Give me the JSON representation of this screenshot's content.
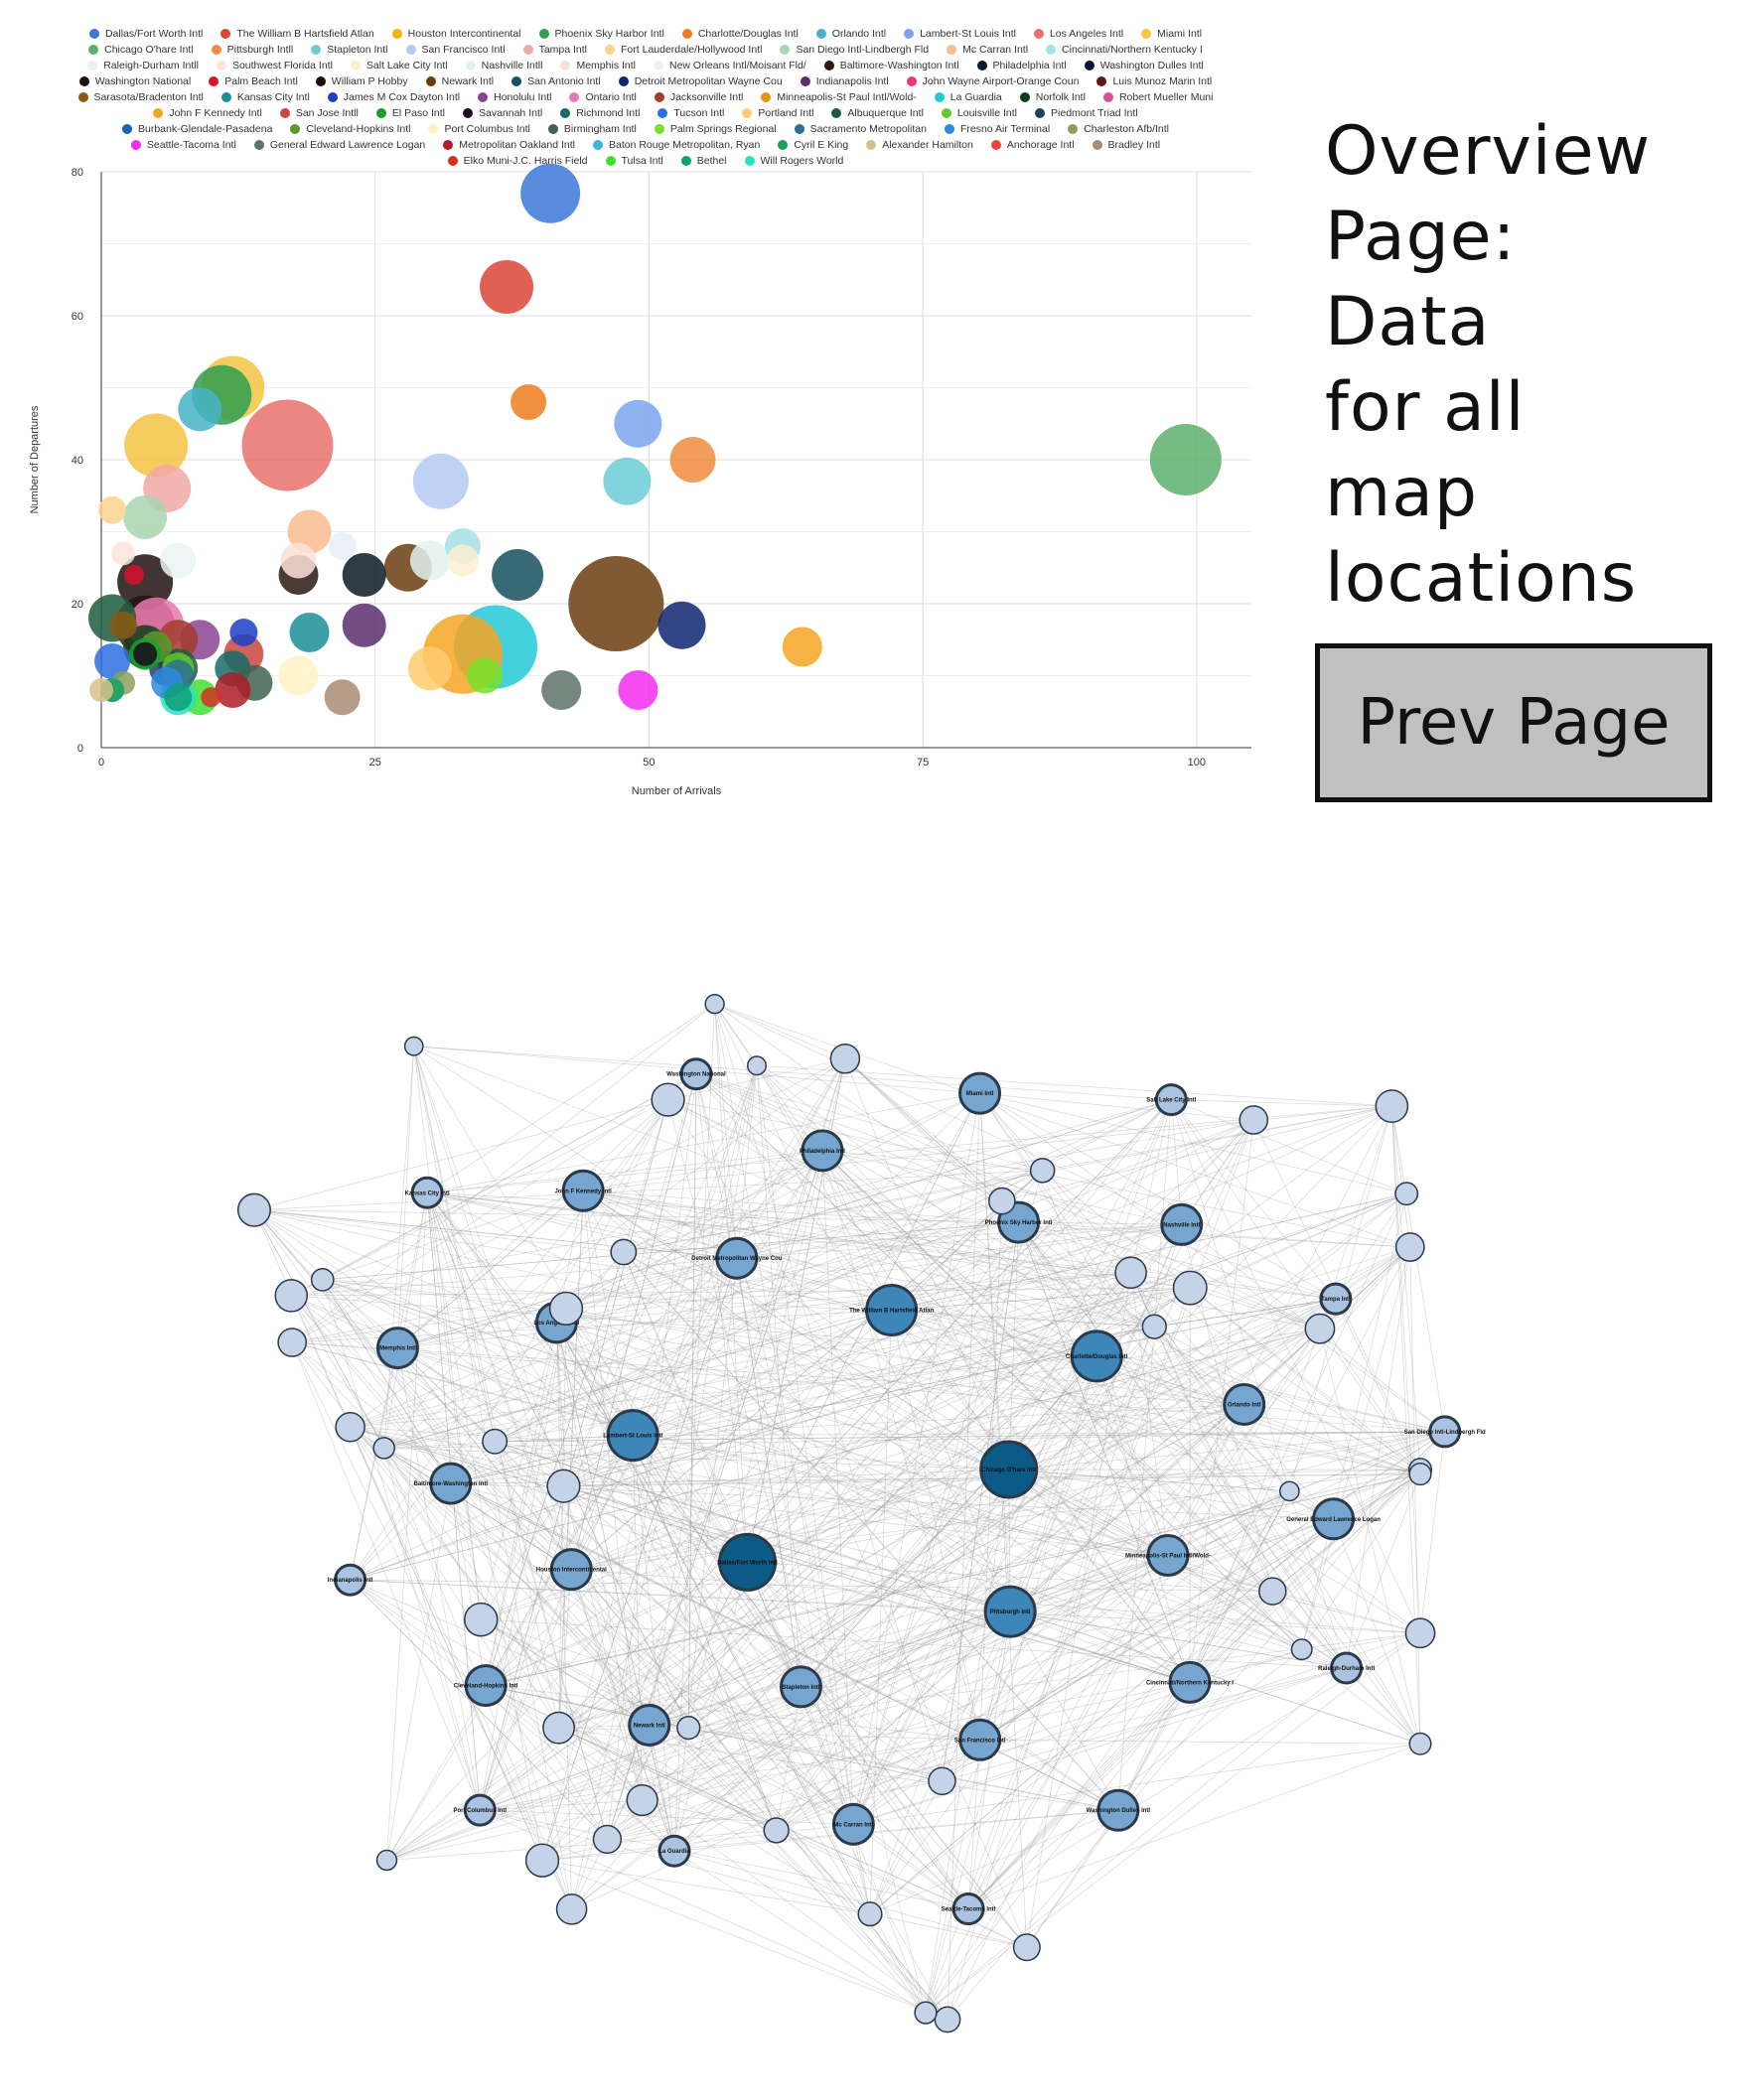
{
  "side_title_lines": [
    "Overview",
    "Page:",
    "Data",
    "for all",
    "map",
    "locations"
  ],
  "prev_button_label": "Prev Page",
  "chart_data": {
    "type": "scatter",
    "xlabel": "Number of Arrivals",
    "ylabel": "Number of Departures",
    "xlim": [
      0,
      105
    ],
    "ylim": [
      0,
      80
    ],
    "x_ticks": [
      "0",
      "25",
      "50",
      "75",
      "100"
    ],
    "y_ticks": [
      "0",
      "20",
      "40",
      "60",
      "80"
    ],
    "grid": true,
    "legend_placement": "top",
    "legend_rows": [
      [
        "Dallas/Fort Worth Intl",
        "The William B Hartsfield Atlan",
        "Houston Intercontinental",
        "Phoenix Sky Harbor Intl",
        "Charlotte/Douglas Intl",
        "Orlando Intl",
        "Lambert-St Louis Intl",
        "Los Angeles Intl",
        "Miami Intl"
      ],
      [
        "Chicago O'hare Intl",
        "Pittsburgh Intll",
        "Stapleton Intl",
        "San Francisco Intl",
        "Tampa Intl",
        "Fort Lauderdale/Hollywood Intl",
        "San Diego Intl-Lindbergh Fld",
        "Mc Carran Intl",
        "Cincinnati/Northern Kentucky I"
      ],
      [
        "Raleigh-Durham Intll",
        "Southwest Florida Intl",
        "Salt Lake City Intl",
        "Nashville Intll",
        "Memphis Intl",
        "New Orleans Intl/Moisant Fld/",
        "Baltimore-Washington Intl",
        "Philadelphia Intl",
        "Washington Dulles Intl"
      ],
      [
        "Washington National",
        "Palm Beach Intl",
        "William P Hobby",
        "Newark Intl",
        "San Antonio Intl",
        "Detroit Metropolitan Wayne Cou",
        "Indianapolis Intl",
        "John Wayne Airport-Orange Coun",
        "Luis Munoz Marin Intl"
      ],
      [
        "Sarasota/Bradenton Intl",
        "Kansas City Intl",
        "James M Cox Dayton Intl",
        "Honolulu Intl",
        "Ontario Intl",
        "Jacksonville Intl",
        "Minneapolis-St Paul Intl/Wold-",
        "La Guardia",
        "Norfolk Intl",
        "Robert Mueller Muni"
      ],
      [
        "John F Kennedy Intl",
        "San Jose Intll",
        "El Paso Intl",
        "Savannah Intl",
        "Richmond Intl",
        "Tucson Intl",
        "Portland Intl",
        "Albuquerque Intl",
        "Louisville Intl",
        "Piedmont Triad Intl"
      ],
      [
        "Burbank-Glendale-Pasadena",
        "Cleveland-Hopkins Intl",
        "Port Columbus Intl",
        "Birmingham Intl",
        "Palm Springs Regional",
        "Sacramento Metropolitan",
        "Fresno Air Terminal",
        "Charleston Afb/Intl"
      ],
      [
        "Seattle-Tacoma Intl",
        "General Edward Lawrence Logan",
        "Metropolitan Oakland Intl",
        "Baton Rouge Metropolitan, Ryan",
        "Cyril E King",
        "Alexander Hamilton",
        "Anchorage Intl",
        "Bradley Intl"
      ],
      [
        "Elko Muni-J.C. Harris Field",
        "Tulsa Intl",
        "Bethel",
        "Will Rogers World"
      ]
    ],
    "legend_colors": [
      [
        "#3b78d8",
        "#db4437",
        "#f4b400",
        "#2e9e4f",
        "#f07c1d",
        "#46b3c6",
        "#7aa4ef",
        "#e8716a",
        "#f6c342"
      ],
      [
        "#5cb06b",
        "#f08c40",
        "#6cccd6",
        "#b5c9f5",
        "#f0a8a3",
        "#fbd38d",
        "#a8d5b2",
        "#f8bc90",
        "#a6dfe6"
      ],
      [
        "#e6eef8",
        "#fde3d8",
        "#fdf0d2",
        "#e2f1ef",
        "#fbe0d9",
        "#eaf4f3",
        "#2a1a12",
        "#0b1a24",
        "#0a0f40"
      ],
      [
        "#201010",
        "#d9112a",
        "#1c0f0a",
        "#6a3d0e",
        "#154f5e",
        "#0d2472",
        "#5a2d6e",
        "#e8387a",
        "#5c1c14"
      ],
      [
        "#8a5a10",
        "#1a8f9a",
        "#1b3fc4",
        "#8a4392",
        "#e879b0",
        "#a33a2e",
        "#e89412",
        "#23c9d8",
        "#0d3d1c",
        "#d8509a"
      ],
      [
        "#f4a523",
        "#c9473d",
        "#16a12a",
        "#1b0a1e",
        "#166b68",
        "#2c6fe0",
        "#ffcb6e",
        "#1d5c3e",
        "#5fcc2a",
        "#233e63"
      ],
      [
        "#1565b0",
        "#5a9a2a",
        "#fff2c2",
        "#3e6450",
        "#79e02a",
        "#2f6f8e",
        "#2d8ae0",
        "#8aa05a"
      ],
      [
        "#f32cf0",
        "#5d7268",
        "#ad1c28",
        "#36b9d6",
        "#20a052",
        "#d8c08a",
        "#f04040",
        "#a88c74"
      ],
      [
        "#d83020",
        "#3ee030",
        "#0da078",
        "#2ce0c0"
      ]
    ],
    "points": [
      {
        "name": "Dallas/Fort Worth Intl",
        "x": 41,
        "y": 77,
        "size": 30,
        "color": "#3b78d8"
      },
      {
        "name": "Chicago O'hare Intl",
        "x": 99,
        "y": 40,
        "size": 36,
        "color": "#5cb06b"
      },
      {
        "name": "The William B Hartsfield Atlan",
        "x": 37,
        "y": 64,
        "size": 27,
        "color": "#db4437"
      },
      {
        "name": "Charlotte/Douglas Intl",
        "x": 39,
        "y": 48,
        "size": 18,
        "color": "#f07c1d"
      },
      {
        "name": "Lambert-St Louis Intl",
        "x": 49,
        "y": 45,
        "size": 24,
        "color": "#7aa4ef"
      },
      {
        "name": "Pittsburgh Intll",
        "x": 54,
        "y": 40,
        "size": 23,
        "color": "#f08c40"
      },
      {
        "name": "Stapleton Intl",
        "x": 48,
        "y": 37,
        "size": 24,
        "color": "#6cccd6"
      },
      {
        "name": "San Francisco Intl",
        "x": 31,
        "y": 37,
        "size": 28,
        "color": "#b5c9f5"
      },
      {
        "name": "Miami Intl",
        "x": 12,
        "y": 50,
        "size": 32,
        "color": "#f6c342"
      },
      {
        "name": "Phoenix Sky Harbor Intl",
        "x": 11,
        "y": 49,
        "size": 30,
        "color": "#2e9e4f"
      },
      {
        "name": "Orlando Intl",
        "x": 9,
        "y": 47,
        "size": 22,
        "color": "#46b3c6"
      },
      {
        "name": "Los Angeles Intl",
        "x": 17,
        "y": 42,
        "size": 46,
        "color": "#e8716a"
      },
      {
        "name": "Houston Intercontinental",
        "x": 5,
        "y": 42,
        "size": 32,
        "color": "#f6c342"
      },
      {
        "name": "Tampa Intl",
        "x": 6,
        "y": 36,
        "size": 24,
        "color": "#f0a8a3"
      },
      {
        "name": "San Diego Intl-Lindbergh Fld",
        "x": 4,
        "y": 32,
        "size": 22,
        "color": "#a8d5b2"
      },
      {
        "name": "Fort Lauderdale/Hollywood Intl",
        "x": 1,
        "y": 33,
        "size": 14,
        "color": "#fbd38d"
      },
      {
        "name": "Mc Carran Intl",
        "x": 19,
        "y": 30,
        "size": 22,
        "color": "#f8bc90"
      },
      {
        "name": "Raleigh-Durham Intll",
        "x": 22,
        "y": 28,
        "size": 14,
        "color": "#e6eef8"
      },
      {
        "name": "Cincinnati/Northern Kentucky I",
        "x": 33,
        "y": 28,
        "size": 18,
        "color": "#a6dfe6"
      },
      {
        "name": "Nashville Intll",
        "x": 30,
        "y": 26,
        "size": 20,
        "color": "#e2f1ef"
      },
      {
        "name": "Memphis Intl",
        "x": 18,
        "y": 26,
        "size": 18,
        "color": "#fbe0d9"
      },
      {
        "name": "Salt Lake City Intl",
        "x": 33,
        "y": 26,
        "size": 16,
        "color": "#fdf0d2"
      },
      {
        "name": "New Orleans Intl/Moisant Fld/",
        "x": 7,
        "y": 26,
        "size": 18,
        "color": "#eaf4f3"
      },
      {
        "name": "Southwest Florida Intl",
        "x": 2,
        "y": 27,
        "size": 12,
        "color": "#fde3d8"
      },
      {
        "name": "Newark Intl",
        "x": 28,
        "y": 25,
        "size": 24,
        "color": "#6a3d0e"
      },
      {
        "name": "San Antonio Intl",
        "x": 38,
        "y": 24,
        "size": 26,
        "color": "#154f5e"
      },
      {
        "name": "Philadelphia Intl",
        "x": 24,
        "y": 24,
        "size": 22,
        "color": "#0b1a24"
      },
      {
        "name": "Baltimore-Washington Intl",
        "x": 18,
        "y": 24,
        "size": 20,
        "color": "#2a1a12"
      },
      {
        "name": "Washington National",
        "x": 4,
        "y": 23,
        "size": 28,
        "color": "#201010"
      },
      {
        "name": "Palm Beach Intl",
        "x": 3,
        "y": 24,
        "size": 10,
        "color": "#d9112a"
      },
      {
        "name": "Minneapolis-St Paul Intl/Wold-",
        "x": 47,
        "y": 20,
        "size": 48,
        "color": "#6a3d0e"
      },
      {
        "name": "Detroit Metropolitan Wayne Cou",
        "x": 53,
        "y": 17,
        "size": 24,
        "color": "#0d2472"
      },
      {
        "name": "Indianapolis Intl",
        "x": 24,
        "y": 17,
        "size": 22,
        "color": "#5a2d6e"
      },
      {
        "name": "Kansas City Intl",
        "x": 19,
        "y": 16,
        "size": 20,
        "color": "#1a8f9a"
      },
      {
        "name": "James M Cox Dayton Intl",
        "x": 13,
        "y": 16,
        "size": 14,
        "color": "#1b3fc4"
      },
      {
        "name": "Honolulu Intl",
        "x": 9,
        "y": 15,
        "size": 20,
        "color": "#8a4392"
      },
      {
        "name": "Ontario Intl",
        "x": 5,
        "y": 17,
        "size": 28,
        "color": "#e879b0"
      },
      {
        "name": "Jacksonville Intl",
        "x": 7,
        "y": 15,
        "size": 20,
        "color": "#a33a2e"
      },
      {
        "name": "Sarasota/Bradenton Intl",
        "x": 2,
        "y": 17,
        "size": 14,
        "color": "#8a5a10"
      },
      {
        "name": "Luis Munoz Marin Intl",
        "x": 4,
        "y": 17,
        "size": 30,
        "color": "#5c1c14"
      },
      {
        "name": "Burbank-Glendale-Pasadena",
        "x": 1,
        "y": 18,
        "size": 24,
        "color": "#1d5c3e"
      },
      {
        "name": "Norfolk Intl",
        "x": 4,
        "y": 14,
        "size": 22,
        "color": "#0d3d1c"
      },
      {
        "name": "La Guardia",
        "x": 36,
        "y": 14,
        "size": 42,
        "color": "#23c9d8"
      },
      {
        "name": "John F Kennedy Intl",
        "x": 33,
        "y": 13,
        "size": 40,
        "color": "#f4a523"
      },
      {
        "name": "Tucson Intl",
        "x": 1,
        "y": 12,
        "size": 18,
        "color": "#2c6fe0"
      },
      {
        "name": "Portland Intl",
        "x": 30,
        "y": 11,
        "size": 22,
        "color": "#ffcb6e"
      },
      {
        "name": "San Jose Intll",
        "x": 13,
        "y": 13,
        "size": 20,
        "color": "#c9473d"
      },
      {
        "name": "Cleveland-Hopkins Intl",
        "x": 5,
        "y": 14,
        "size": 16,
        "color": "#5a9a2a"
      },
      {
        "name": "El Paso Intl",
        "x": 4,
        "y": 13,
        "size": 16,
        "color": "#16a12a"
      },
      {
        "name": "Savannah Intl",
        "x": 4,
        "y": 13,
        "size": 12,
        "color": "#1b0a1e"
      },
      {
        "name": "Richmond Intl",
        "x": 12,
        "y": 11,
        "size": 18,
        "color": "#166b68"
      },
      {
        "name": "Albuquerque Intl",
        "x": 7,
        "y": 11,
        "size": 20,
        "color": "#1d5c3e"
      },
      {
        "name": "Louisville Intl",
        "x": 7,
        "y": 11,
        "size": 16,
        "color": "#5fcc2a"
      },
      {
        "name": "Piedmont Triad Intl",
        "x": 6,
        "y": 11,
        "size": 18,
        "color": "#233e63"
      },
      {
        "name": "Port Columbus Intl",
        "x": 18,
        "y": 10,
        "size": 20,
        "color": "#fff2c2"
      },
      {
        "name": "Birmingham Intl",
        "x": 14,
        "y": 9,
        "size": 18,
        "color": "#3e6450"
      },
      {
        "name": "Palm Springs Regional",
        "x": 35,
        "y": 10,
        "size": 18,
        "color": "#79e02a"
      },
      {
        "name": "Sacramento Metropolitan",
        "x": 7,
        "y": 10,
        "size": 16,
        "color": "#2f6f8e"
      },
      {
        "name": "Fresno Air Terminal",
        "x": 6,
        "y": 9,
        "size": 16,
        "color": "#2d8ae0"
      },
      {
        "name": "Charleston Afb/Intl",
        "x": 2,
        "y": 9,
        "size": 12,
        "color": "#8aa05a"
      },
      {
        "name": "Seattle-Tacoma Intl",
        "x": 49,
        "y": 8,
        "size": 20,
        "color": "#f32cf0"
      },
      {
        "name": "General Edward Lawrence Logan",
        "x": 42,
        "y": 8,
        "size": 20,
        "color": "#5d7268"
      },
      {
        "name": "Metropolitan Oakland Intl",
        "x": 12,
        "y": 8,
        "size": 18,
        "color": "#ad1c28"
      },
      {
        "name": "Baton Rouge Metropolitan, Ryan",
        "x": 1,
        "y": 8,
        "size": 12,
        "color": "#36b9d6"
      },
      {
        "name": "Cyril E King",
        "x": 1,
        "y": 8,
        "size": 12,
        "color": "#20a052"
      },
      {
        "name": "Alexander Hamilton",
        "x": 0,
        "y": 8,
        "size": 12,
        "color": "#d8c08a"
      },
      {
        "name": "Anchorage Intl",
        "x": 64,
        "y": 14,
        "size": 20,
        "color": "#f4a523"
      },
      {
        "name": "Bradley Intl",
        "x": 22,
        "y": 7,
        "size": 18,
        "color": "#a88c74"
      },
      {
        "name": "Elko Muni-J.C. Harris Field",
        "x": 10,
        "y": 7,
        "size": 10,
        "color": "#d83020"
      },
      {
        "name": "Tulsa Intl",
        "x": 9,
        "y": 7,
        "size": 18,
        "color": "#3ee030"
      },
      {
        "name": "Bethel",
        "x": 7,
        "y": 7,
        "size": 14,
        "color": "#0da078"
      },
      {
        "name": "Will Rogers World",
        "x": 7,
        "y": 7,
        "size": 18,
        "color": "#2ce0c0"
      }
    ]
  },
  "network": {
    "nodes": [
      {
        "label": "Chicago O'hare Intl",
        "tier": 1
      },
      {
        "label": "Dallas/Fort Worth Intl",
        "tier": 1
      },
      {
        "label": "The William B Hartsfield Atlan",
        "tier": 2
      },
      {
        "label": "Pittsburgh Intl",
        "tier": 2
      },
      {
        "label": "Lambert-St Louis Intl",
        "tier": 2
      },
      {
        "label": "Charlotte/Douglas Intl",
        "tier": 2
      },
      {
        "label": "Stapleton Intl",
        "tier": 3
      },
      {
        "label": "Detroit Metropolitan Wayne Cou",
        "tier": 3
      },
      {
        "label": "Minneapolis-St Paul Intl/Wold-",
        "tier": 3
      },
      {
        "label": "Houston Intercontinental",
        "tier": 3
      },
      {
        "label": "Phoenix Sky Harbor Intl",
        "tier": 3
      },
      {
        "label": "San Francisco Intl",
        "tier": 3
      },
      {
        "label": "Los Angeles Intl",
        "tier": 3
      },
      {
        "label": "Orlando Intl",
        "tier": 3
      },
      {
        "label": "Newark Intl",
        "tier": 3
      },
      {
        "label": "Philadelphia Intl",
        "tier": 3
      },
      {
        "label": "Cincinnati/Northern Kentucky I",
        "tier": 3
      },
      {
        "label": "Baltimore-Washington Intl",
        "tier": 3
      },
      {
        "label": "Nashville Intl",
        "tier": 3
      },
      {
        "label": "Mc Carran Intl",
        "tier": 3
      },
      {
        "label": "John F Kennedy Intl",
        "tier": 3
      },
      {
        "label": "General Edward Lawrence Logan",
        "tier": 3
      },
      {
        "label": "Cleveland-Hopkins Intl",
        "tier": 3
      },
      {
        "label": "Miami Intl",
        "tier": 3
      },
      {
        "label": "Washington Dulles Intl",
        "tier": 3
      },
      {
        "label": "Memphis Intl",
        "tier": 3
      },
      {
        "label": "Tampa Intl",
        "tier": 4
      },
      {
        "label": "La Guardia",
        "tier": 4
      },
      {
        "label": "Washington National",
        "tier": 4
      },
      {
        "label": "Raleigh-Durham Intl",
        "tier": 4
      },
      {
        "label": "Indianapolis Intl",
        "tier": 4
      },
      {
        "label": "Salt Lake City Intl",
        "tier": 4
      },
      {
        "label": "Seattle-Tacoma Intl",
        "tier": 4
      },
      {
        "label": "Kansas City Intl",
        "tier": 4
      },
      {
        "label": "San Diego Intl-Lindbergh Fld",
        "tier": 4
      },
      {
        "label": "Port Columbus Intl",
        "tier": 4
      }
    ]
  }
}
